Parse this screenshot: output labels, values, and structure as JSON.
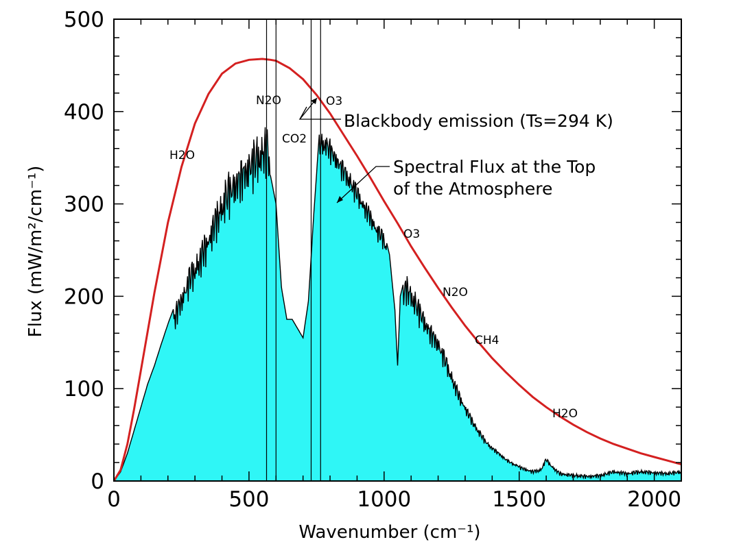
{
  "chart_data": {
    "type": "area",
    "xlabel": "Wavenumber (cm⁻¹)",
    "ylabel": "Flux (mW/m²/cm⁻¹)",
    "xlim": [
      0,
      2100
    ],
    "ylim": [
      0,
      500
    ],
    "x_ticks": [
      "0",
      "500",
      "1000",
      "1500",
      "2000"
    ],
    "y_ticks": [
      "0",
      "100",
      "200",
      "300",
      "400",
      "500"
    ],
    "series": [
      {
        "type": "line",
        "color": "#d42020",
        "x": [
          0,
          25,
          50,
          75,
          100,
          150,
          200,
          250,
          300,
          350,
          400,
          450,
          500,
          550,
          580,
          600,
          650,
          700,
          750,
          800,
          850,
          900,
          950,
          1000,
          1050,
          1100,
          1150,
          1200,
          1250,
          1300,
          1350,
          1400,
          1450,
          1500,
          1550,
          1600,
          1650,
          1700,
          1750,
          1800,
          1850,
          1900,
          1950,
          2000,
          2050,
          2100
        ],
        "y": [
          0,
          12,
          40,
          78,
          120,
          204,
          280,
          340,
          387,
          419,
          441,
          452,
          456,
          457,
          456,
          455,
          447,
          435,
          418,
          398,
          375,
          352,
          328,
          303,
          279,
          254,
          231,
          209,
          188,
          168,
          150,
          133,
          118,
          104,
          91,
          80,
          70,
          61,
          53,
          46,
          40,
          35,
          30,
          26,
          22,
          18
        ]
      },
      {
        "type": "area",
        "color": "#000000",
        "fill": "#2ff6f6",
        "x": [
          0,
          25,
          50,
          75,
          100,
          125,
          150,
          175,
          200,
          225,
          250,
          275,
          300,
          325,
          350,
          375,
          400,
          425,
          450,
          475,
          500,
          525,
          550,
          570,
          580,
          600,
          620,
          640,
          660,
          680,
          700,
          720,
          740,
          760,
          780,
          800,
          825,
          850,
          875,
          900,
          925,
          950,
          975,
          1000,
          1020,
          1040,
          1050,
          1060,
          1080,
          1100,
          1125,
          1150,
          1175,
          1200,
          1225,
          1250,
          1275,
          1300,
          1325,
          1350,
          1375,
          1400,
          1425,
          1450,
          1475,
          1500,
          1550,
          1580,
          1600,
          1620,
          1650,
          1700,
          1750,
          1800,
          1850,
          1900,
          1950,
          2000,
          2050,
          2100
        ],
        "y": [
          0,
          10,
          30,
          55,
          80,
          105,
          125,
          148,
          170,
          190,
          210,
          230,
          245,
          260,
          280,
          300,
          318,
          335,
          345,
          355,
          365,
          372,
          380,
          390,
          330,
          300,
          210,
          175,
          175,
          165,
          155,
          195,
          290,
          375,
          378,
          372,
          360,
          348,
          335,
          322,
          308,
          295,
          280,
          270,
          245,
          185,
          125,
          200,
          225,
          215,
          200,
          185,
          170,
          160,
          140,
          120,
          100,
          85,
          70,
          57,
          46,
          38,
          32,
          25,
          20,
          17,
          12,
          14,
          25,
          18,
          10,
          8,
          7,
          8,
          12,
          10,
          12,
          11,
          10,
          12
        ]
      }
    ],
    "annotations": {
      "blackbody": "Blackbody emission (Ts=294 K)",
      "spectral_line1": "Spectral Flux at the Top",
      "spectral_line2": "of the Atmosphere",
      "molecules": [
        "H2O",
        "N2O",
        "O3",
        "CO2",
        "O3",
        "N2O",
        "CH4",
        "H2O"
      ]
    },
    "vertical_lines_x": [
      565,
      600,
      730,
      765
    ]
  }
}
